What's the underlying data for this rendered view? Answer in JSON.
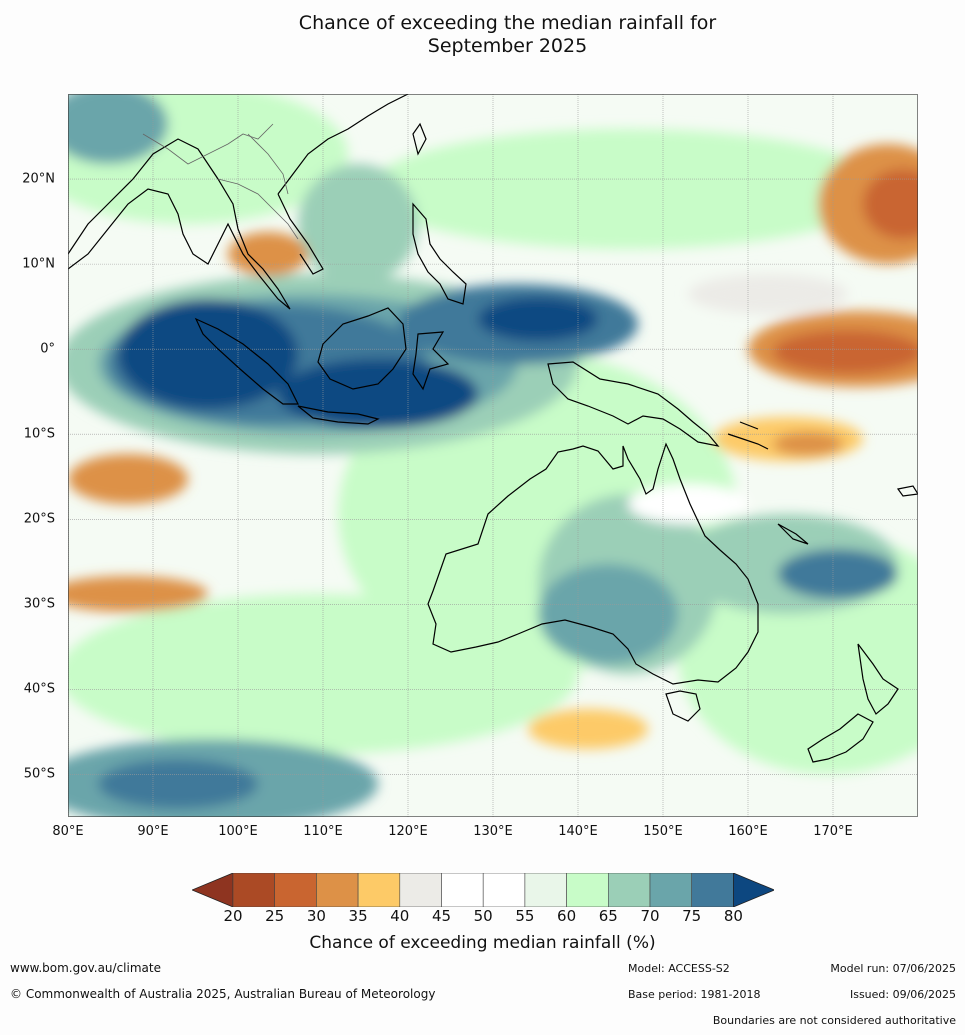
{
  "title": {
    "line1": "Chance of exceeding the median rainfall for",
    "line2": "September 2025"
  },
  "map": {
    "extent": {
      "lon_min": 80,
      "lon_max": 180,
      "lat_min": -55,
      "lat_max": 30
    },
    "lat_labels": [
      {
        "lat": 20,
        "text": "20°N"
      },
      {
        "lat": 10,
        "text": "10°N"
      },
      {
        "lat": 0,
        "text": "0°"
      },
      {
        "lat": -10,
        "text": "10°S"
      },
      {
        "lat": -20,
        "text": "20°S"
      },
      {
        "lat": -30,
        "text": "30°S"
      },
      {
        "lat": -40,
        "text": "40°S"
      },
      {
        "lat": -50,
        "text": "50°S"
      }
    ],
    "lon_labels": [
      {
        "lon": 80,
        "text": "80°E"
      },
      {
        "lon": 90,
        "text": "90°E"
      },
      {
        "lon": 100,
        "text": "100°E"
      },
      {
        "lon": 110,
        "text": "110°E"
      },
      {
        "lon": 120,
        "text": "120°E"
      },
      {
        "lon": 130,
        "text": "130°E"
      },
      {
        "lon": 140,
        "text": "140°E"
      },
      {
        "lon": 150,
        "text": "150°E"
      },
      {
        "lon": 160,
        "text": "160°E"
      },
      {
        "lon": 170,
        "text": "170°E"
      }
    ]
  },
  "colorbar": {
    "label": "Chance of exceeding median rainfall (%)",
    "ticks": [
      "20",
      "25",
      "30",
      "35",
      "40",
      "45",
      "50",
      "55",
      "60",
      "65",
      "70",
      "75",
      "80"
    ],
    "under_color": "#8e3420",
    "over_color": "#0d4780",
    "colors": [
      "#ab4a25",
      "#c96530",
      "#dd9147",
      "#fdca67",
      "#ecebe7",
      "#ffffff",
      "#ffffff",
      "#e9f6e9",
      "#c8fcc8",
      "#9bcfb7",
      "#6aa5aa",
      "#41799a"
    ]
  },
  "footer": {
    "website": "www.bom.gov.au/climate",
    "copyright": "© Commonwealth of Australia 2025, Australian Bureau of Meteorology",
    "model": "Model: ACCESS-S2",
    "base_period": "Base period: 1981-2018",
    "model_run": "Model run: 07/06/2025",
    "issued": "Issued: 09/06/2025",
    "disclaimer": "Boundaries are not considered authoritative"
  }
}
